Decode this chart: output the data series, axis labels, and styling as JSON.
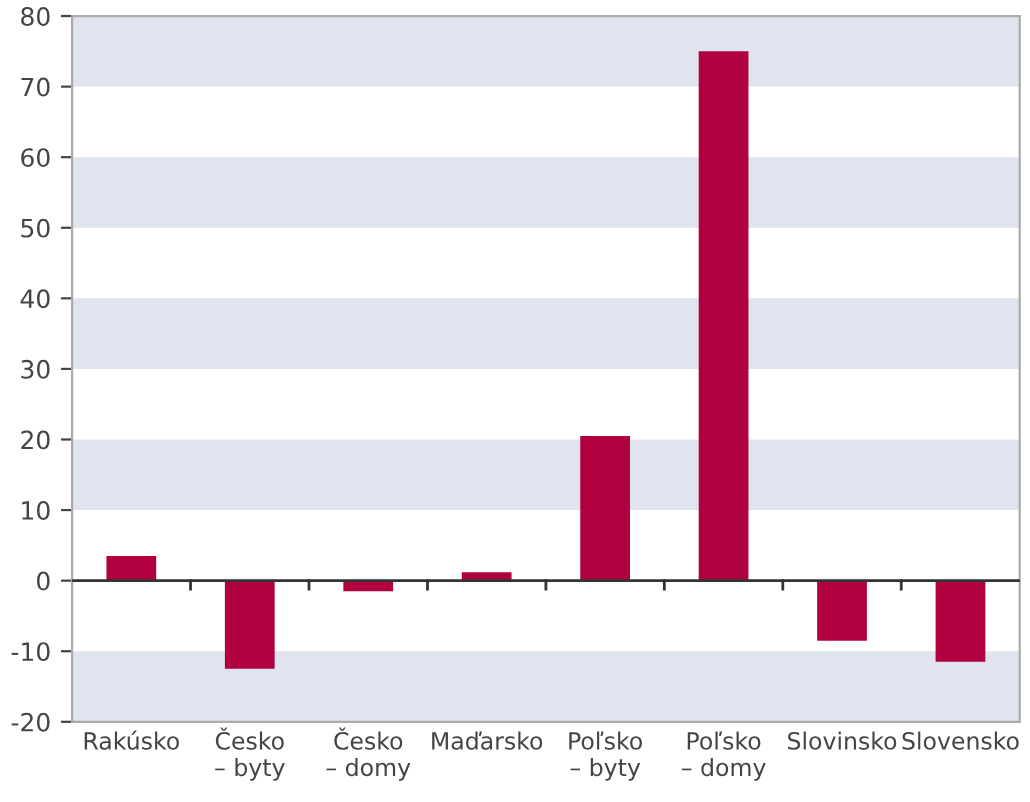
{
  "chart_data": {
    "type": "bar",
    "categories": [
      "Rakúsko",
      "Česko\n– byty",
      "Česko\n– domy",
      "Maďarsko",
      "Poľsko\n– byty",
      "Poľsko\n– domy",
      "Slovinsko",
      "Slovensko"
    ],
    "values": [
      3.5,
      -12.5,
      -1.5,
      1.2,
      20.5,
      75,
      -8.5,
      -11.5
    ],
    "color": "#b0003f",
    "ylim": [
      -20,
      80
    ],
    "yticks": [
      -20,
      -10,
      0,
      10,
      20,
      30,
      40,
      50,
      60,
      70,
      80
    ],
    "bands": [
      {
        "axis": "y",
        "from": -20,
        "to": -10,
        "color": "#dfe4ee"
      },
      {
        "axis": "y",
        "from": 10,
        "to": 20,
        "color": "#dfe4ee"
      },
      {
        "axis": "y",
        "from": 30,
        "to": 40,
        "color": "#dfe4ee"
      },
      {
        "axis": "y",
        "from": 50,
        "to": 60,
        "color": "#dfe4ee"
      },
      {
        "axis": "y",
        "from": 70,
        "to": 80,
        "color": "#dfe4ee"
      }
    ],
    "ref_lines": [
      {
        "axis": "y",
        "value": 0,
        "color": "#333333"
      }
    ],
    "grid": false,
    "legend": false
  }
}
